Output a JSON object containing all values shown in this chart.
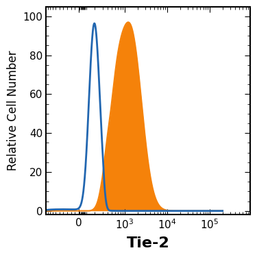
{
  "title": "",
  "xlabel": "Tie-2",
  "ylabel": "Relative Cell Number",
  "ylim": [
    -2,
    105
  ],
  "yticks": [
    0,
    20,
    40,
    60,
    80,
    100
  ],
  "linthresh": 300,
  "linscale": 0.5,
  "xlim_left": -500,
  "xlim_right": 150000,
  "blue_curve_color": "#2166b0",
  "blue_curve_linewidth": 2.0,
  "orange_curve_color": "#f5820a",
  "orange_curve_linewidth": 1.5,
  "background_color": "#ffffff",
  "axis_linewidth": 1.5,
  "xlabel_fontsize": 16,
  "ylabel_fontsize": 12,
  "tick_fontsize": 11,
  "xlabel_fontweight": "bold"
}
